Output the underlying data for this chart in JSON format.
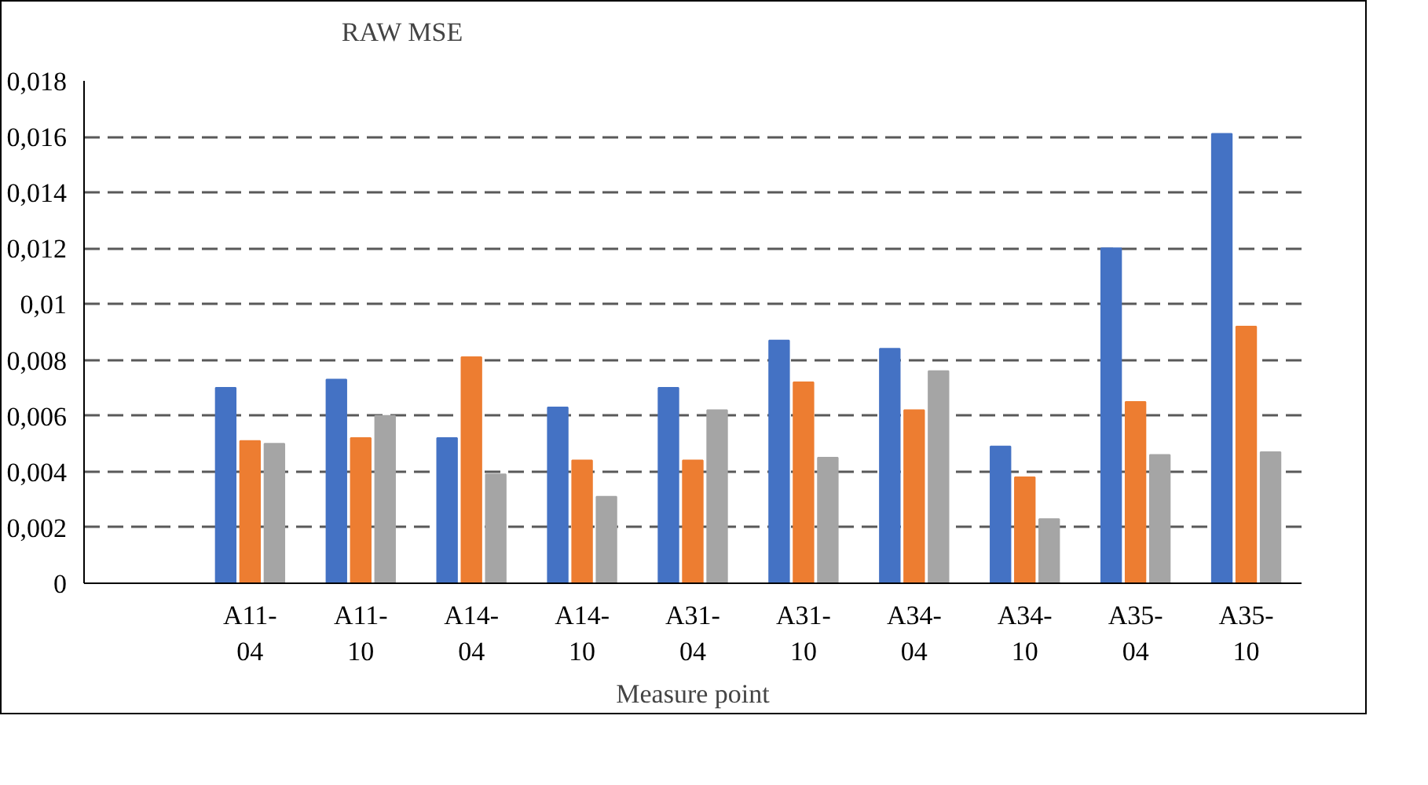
{
  "chart_data": {
    "type": "bar",
    "xlabel": "Measure point",
    "categories": [
      null,
      "A11-04",
      "A11-10",
      "A14-04",
      "A14-10",
      "A31-04",
      "A31-10",
      "A34-04",
      "A34-10",
      "A35-04",
      "A35-10"
    ],
    "series": [
      {
        "name": "RAW MSE",
        "color": "#4472c4",
        "values": [
          null,
          0.007,
          0.0073,
          0.0052,
          0.0063,
          0.007,
          0.0087,
          0.0084,
          0.0049,
          0.012,
          0.0161
        ]
      },
      {
        "color": "#ed7d31",
        "values": [
          null,
          0.0051,
          0.0052,
          0.0081,
          0.0044,
          0.0044,
          0.0072,
          0.0062,
          0.0038,
          0.0065,
          0.0092
        ]
      },
      {
        "color": "#a5a5a5",
        "values": [
          null,
          0.005,
          0.006,
          0.0039,
          0.0031,
          0.0062,
          0.0045,
          0.0076,
          0.0023,
          0.0046,
          0.0047
        ]
      }
    ],
    "ylim": [
      0,
      0.018
    ],
    "yticks": [
      0,
      {
        "value": 0.002,
        "label": "0,002"
      },
      {
        "value": 0.004,
        "label": "0,004"
      },
      {
        "value": 0.006,
        "label": "0,006"
      },
      {
        "value": 0.008,
        "label": "0,008"
      },
      {
        "value": 0.01,
        "label": "0,01"
      },
      {
        "value": 0.012,
        "label": "0,012"
      },
      {
        "value": 0.014,
        "label": "0,014"
      },
      {
        "value": 0.016,
        "label": "0,016"
      },
      {
        "value": 0.018,
        "label": "0,018"
      }
    ],
    "grid": "y",
    "legend": "top"
  }
}
